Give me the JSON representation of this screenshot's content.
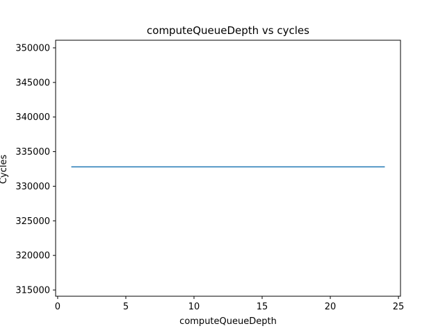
{
  "chart_data": {
    "type": "line",
    "title": "computeQueueDepth vs cycles",
    "xlabel": "computeQueueDepth",
    "ylabel": "Cycles",
    "xlim": [
      -0.15,
      25.15
    ],
    "ylim": [
      314100,
      351100
    ],
    "x_ticks": [
      0,
      5,
      10,
      15,
      20,
      25
    ],
    "y_ticks": [
      315000,
      320000,
      325000,
      330000,
      335000,
      340000,
      345000,
      350000
    ],
    "x_tick_labels": [
      "0",
      "5",
      "10",
      "15",
      "20",
      "25"
    ],
    "y_tick_labels": [
      "315000",
      "320000",
      "325000",
      "330000",
      "335000",
      "340000",
      "345000",
      "350000"
    ],
    "grid": false,
    "series": [
      {
        "color": "#1f77b4",
        "x": [
          1,
          24
        ],
        "y": [
          332800,
          332800
        ]
      }
    ]
  }
}
